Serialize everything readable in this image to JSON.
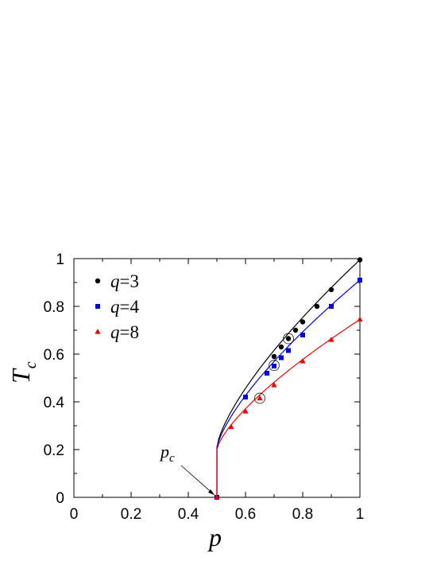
{
  "chart_data": {
    "type": "scatter",
    "xlabel": "p",
    "ylabel": "T",
    "ylabel_subscript": "c",
    "xlim": [
      0,
      1
    ],
    "ylim": [
      0,
      1
    ],
    "xticks": [
      0,
      0.2,
      0.4,
      0.6,
      0.8,
      1
    ],
    "xtick_labels": [
      "0",
      "0.2",
      "0.4",
      "0.6",
      "0.8",
      "1"
    ],
    "yticks": [
      0,
      0.2,
      0.4,
      0.6,
      0.8,
      1
    ],
    "ytick_labels": [
      "0",
      "0.2",
      "0.4",
      "0.6",
      "0.8",
      "1"
    ],
    "legend_position": "top-left",
    "annotation": {
      "text": "p",
      "subscript": "c",
      "points_to": [
        0.5,
        0
      ]
    },
    "series": [
      {
        "name": "q=3",
        "legend_prefix": "q",
        "legend_value": "=3",
        "color": "#000000",
        "marker": "circle",
        "x": [
          0.5,
          0.7,
          0.725,
          0.75,
          0.775,
          0.8,
          0.85,
          0.9,
          1.0
        ],
        "y": [
          0.0,
          0.59,
          0.63,
          0.665,
          0.7,
          0.735,
          0.8,
          0.87,
          0.995
        ],
        "fit_line": {
          "x0": 0.5,
          "y_jump": 0.21,
          "y_end": 0.995
        },
        "circled_point": [
          0.75,
          0.665
        ]
      },
      {
        "name": "q=4",
        "legend_prefix": "q",
        "legend_value": "=4",
        "color": "#0000dd",
        "marker": "square",
        "x": [
          0.5,
          0.6,
          0.675,
          0.7,
          0.725,
          0.75,
          0.8,
          0.9,
          1.0
        ],
        "y": [
          0.0,
          0.42,
          0.52,
          0.55,
          0.585,
          0.615,
          0.68,
          0.8,
          0.91
        ],
        "fit_line": {
          "x0": 0.5,
          "y_jump": 0.205,
          "y_end": 0.91
        },
        "circled_point": [
          0.7,
          0.553
        ]
      },
      {
        "name": "q=8",
        "legend_prefix": "q",
        "legend_value": "=8",
        "color": "#ee0000",
        "marker": "triangle",
        "x": [
          0.5,
          0.55,
          0.6,
          0.65,
          0.7,
          0.8,
          0.9,
          1.0
        ],
        "y": [
          0.0,
          0.295,
          0.36,
          0.415,
          0.47,
          0.57,
          0.66,
          0.745
        ],
        "fit_line": {
          "x0": 0.5,
          "y_jump": 0.2,
          "y_end": 0.745
        },
        "circled_point": [
          0.65,
          0.415
        ]
      }
    ]
  }
}
